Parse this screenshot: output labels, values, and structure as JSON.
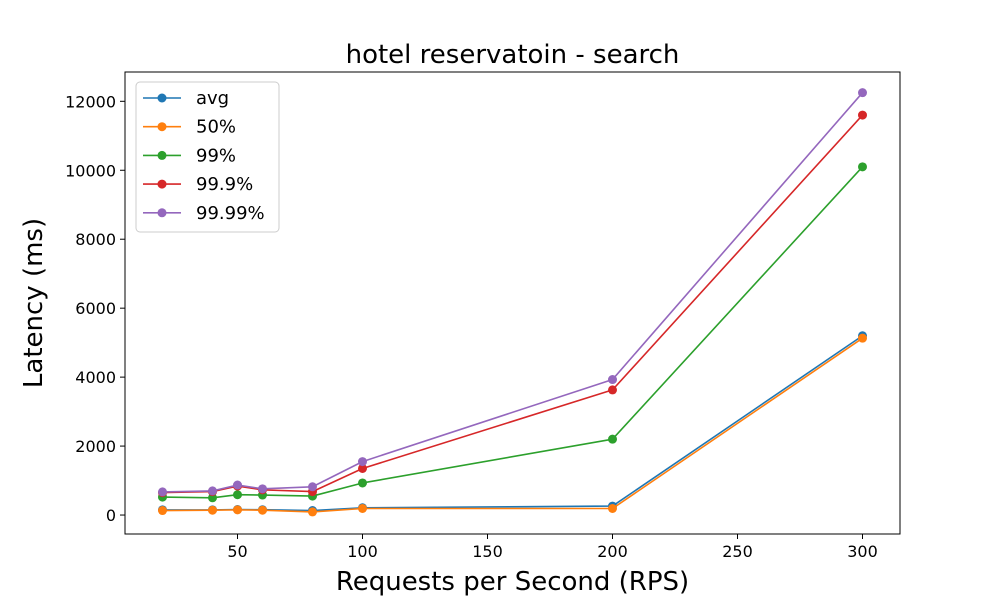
{
  "chart_data": {
    "type": "line",
    "title": "hotel reservatoin - search",
    "xlabel": "Requests per Second (RPS)",
    "ylabel": "Latency (ms)",
    "x": [
      20,
      40,
      50,
      60,
      80,
      100,
      200,
      300
    ],
    "xlim": [
      5,
      315
    ],
    "ylim": [
      -550,
      12850
    ],
    "xticks": [
      50,
      100,
      150,
      200,
      250,
      300
    ],
    "yticks": [
      0,
      2000,
      4000,
      6000,
      8000,
      10000,
      12000
    ],
    "grid": false,
    "legend_position": "top-left",
    "series": [
      {
        "name": "avg",
        "color": "#1f77b4",
        "values": [
          150,
          150,
          160,
          155,
          130,
          210,
          260,
          5200
        ]
      },
      {
        "name": "50%",
        "color": "#ff7f0e",
        "values": [
          130,
          140,
          150,
          140,
          90,
          190,
          190,
          5130
        ]
      },
      {
        "name": "99%",
        "color": "#2ca02c",
        "values": [
          520,
          500,
          590,
          580,
          550,
          930,
          2200,
          10100
        ]
      },
      {
        "name": "99.9%",
        "color": "#d62728",
        "values": [
          650,
          680,
          840,
          730,
          680,
          1350,
          3630,
          11600
        ]
      },
      {
        "name": "99.99%",
        "color": "#9467bd",
        "values": [
          670,
          700,
          870,
          760,
          820,
          1550,
          3930,
          12250
        ]
      }
    ]
  }
}
